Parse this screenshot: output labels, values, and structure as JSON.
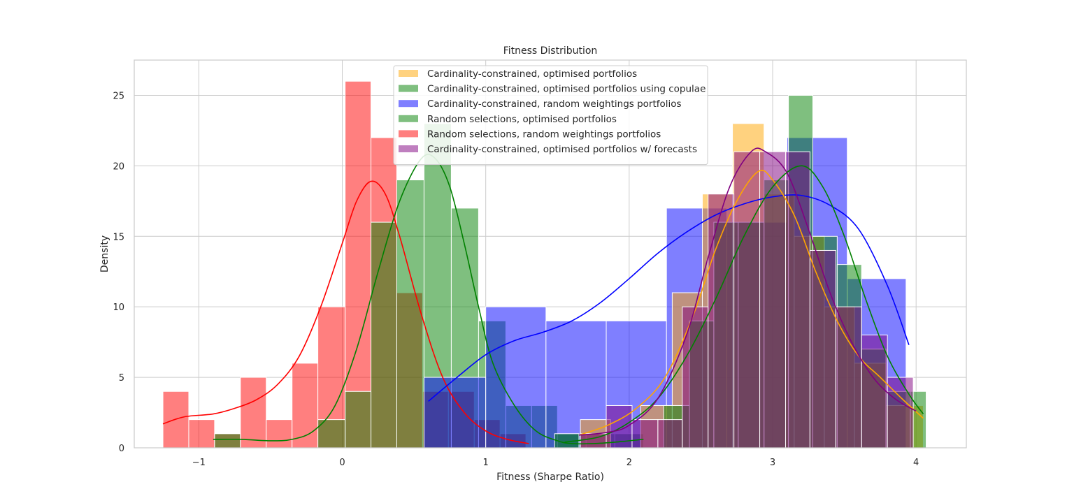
{
  "chart_data": {
    "type": "histogram",
    "title": "Fitness Distribution",
    "xlabel": "Fitness (Sharpe Ratio)",
    "ylabel": "Density",
    "xlim": [
      -1.45,
      4.35
    ],
    "ylim": [
      0,
      27.5
    ],
    "xticks": [
      {
        "v": -1,
        "label": "−1"
      },
      {
        "v": 0,
        "label": "0"
      },
      {
        "v": 1,
        "label": "1"
      },
      {
        "v": 2,
        "label": "2"
      },
      {
        "v": 3,
        "label": "3"
      },
      {
        "v": 4,
        "label": "4"
      }
    ],
    "yticks": [
      {
        "v": 0,
        "label": "0"
      },
      {
        "v": 5,
        "label": "5"
      },
      {
        "v": 10,
        "label": "10"
      },
      {
        "v": 15,
        "label": "15"
      },
      {
        "v": 20,
        "label": "20"
      },
      {
        "v": 25,
        "label": "25"
      }
    ],
    "grid": true,
    "legend_position": "top-center",
    "series": [
      {
        "name": "Random selections, random weightings portfolios",
        "color": "#ff0000",
        "bins": [
          [
            -1.25,
            -1.07,
            4
          ],
          [
            -1.07,
            -0.89,
            2
          ],
          [
            -0.89,
            -0.71,
            1
          ],
          [
            -0.71,
            -0.53,
            5
          ],
          [
            -0.53,
            -0.35,
            2
          ],
          [
            -0.35,
            -0.17,
            6
          ],
          [
            -0.17,
            0.02,
            10
          ],
          [
            0.02,
            0.2,
            26
          ],
          [
            0.2,
            0.38,
            22
          ],
          [
            0.38,
            0.56,
            11
          ],
          [
            0.56,
            0.74,
            4
          ],
          [
            0.74,
            0.92,
            4
          ],
          [
            0.92,
            1.1,
            2
          ],
          [
            1.1,
            1.28,
            1
          ]
        ],
        "kde": [
          [
            -1.25,
            1.7
          ],
          [
            -1.1,
            2.2
          ],
          [
            -0.9,
            2.4
          ],
          [
            -0.75,
            2.8
          ],
          [
            -0.6,
            3.4
          ],
          [
            -0.45,
            4.5
          ],
          [
            -0.3,
            6.5
          ],
          [
            -0.15,
            10.0
          ],
          [
            0.0,
            14.5
          ],
          [
            0.1,
            17.5
          ],
          [
            0.2,
            18.9
          ],
          [
            0.3,
            18.0
          ],
          [
            0.4,
            15.0
          ],
          [
            0.55,
            9.5
          ],
          [
            0.7,
            5.0
          ],
          [
            0.85,
            2.5
          ],
          [
            1.0,
            1.2
          ],
          [
            1.15,
            0.6
          ],
          [
            1.3,
            0.3
          ]
        ]
      },
      {
        "name": "Random selections, optimised portfolios",
        "color": "#008000",
        "bins": [
          [
            -0.89,
            -0.71,
            1
          ],
          [
            -0.17,
            0.02,
            2
          ],
          [
            0.02,
            0.2,
            4
          ],
          [
            0.2,
            0.38,
            16
          ],
          [
            0.38,
            0.57,
            19
          ],
          [
            0.57,
            0.76,
            23
          ],
          [
            0.76,
            0.95,
            17
          ],
          [
            0.95,
            1.14,
            9
          ],
          [
            1.14,
            1.32,
            3
          ],
          [
            1.32,
            1.5,
            3
          ],
          [
            1.5,
            1.7,
            1
          ],
          [
            1.7,
            1.9,
            1
          ],
          [
            1.9,
            2.1,
            1
          ]
        ],
        "kde": [
          [
            -0.9,
            0.6
          ],
          [
            -0.7,
            0.6
          ],
          [
            -0.5,
            0.5
          ],
          [
            -0.35,
            0.6
          ],
          [
            -0.2,
            1.2
          ],
          [
            -0.05,
            3.0
          ],
          [
            0.1,
            7.0
          ],
          [
            0.25,
            12.5
          ],
          [
            0.4,
            17.5
          ],
          [
            0.55,
            20.5
          ],
          [
            0.65,
            20.5
          ],
          [
            0.75,
            18.5
          ],
          [
            0.85,
            14.5
          ],
          [
            0.95,
            10.0
          ],
          [
            1.05,
            6.0
          ],
          [
            1.2,
            3.0
          ],
          [
            1.35,
            1.2
          ],
          [
            1.5,
            0.5
          ],
          [
            1.6,
            0.3
          ],
          [
            1.75,
            0.3
          ],
          [
            1.9,
            0.4
          ],
          [
            2.1,
            0.6
          ]
        ]
      },
      {
        "name": "Cardinality-constrained, random weightings portfolios",
        "color": "#0000ff",
        "bins": [
          [
            0.57,
            1.0,
            5
          ],
          [
            1.0,
            1.42,
            10
          ],
          [
            1.42,
            1.84,
            9
          ],
          [
            1.84,
            2.26,
            9
          ],
          [
            2.26,
            2.68,
            17
          ],
          [
            2.68,
            3.1,
            16
          ],
          [
            3.1,
            3.52,
            22
          ],
          [
            3.52,
            3.93,
            12
          ]
        ],
        "kde": [
          [
            0.6,
            3.3
          ],
          [
            0.8,
            5.0
          ],
          [
            1.0,
            6.6
          ],
          [
            1.2,
            7.6
          ],
          [
            1.4,
            8.2
          ],
          [
            1.6,
            9.0
          ],
          [
            1.8,
            10.3
          ],
          [
            2.0,
            12.0
          ],
          [
            2.2,
            13.8
          ],
          [
            2.4,
            15.3
          ],
          [
            2.6,
            16.5
          ],
          [
            2.8,
            17.3
          ],
          [
            3.0,
            17.8
          ],
          [
            3.2,
            17.9
          ],
          [
            3.4,
            17.2
          ],
          [
            3.6,
            15.5
          ],
          [
            3.8,
            11.5
          ],
          [
            3.95,
            7.3
          ]
        ]
      },
      {
        "name": "Cardinality-constrained, optimised portfolios",
        "color": "#ffa500",
        "bins": [
          [
            1.66,
            1.87,
            2
          ],
          [
            2.08,
            2.3,
            3
          ],
          [
            2.3,
            2.51,
            11
          ],
          [
            2.51,
            2.72,
            18
          ],
          [
            2.72,
            2.94,
            23
          ],
          [
            2.94,
            3.15,
            18
          ],
          [
            3.15,
            3.36,
            15
          ],
          [
            3.36,
            3.57,
            10
          ],
          [
            3.57,
            3.79,
            6
          ],
          [
            3.79,
            4.05,
            3
          ]
        ],
        "kde": [
          [
            1.65,
            0.9
          ],
          [
            1.85,
            1.6
          ],
          [
            2.05,
            2.8
          ],
          [
            2.25,
            5.0
          ],
          [
            2.45,
            9.5
          ],
          [
            2.6,
            14.0
          ],
          [
            2.75,
            17.5
          ],
          [
            2.9,
            19.6
          ],
          [
            3.0,
            19.0
          ],
          [
            3.15,
            16.5
          ],
          [
            3.3,
            12.5
          ],
          [
            3.45,
            9.0
          ],
          [
            3.6,
            6.5
          ],
          [
            3.75,
            5.0
          ],
          [
            3.9,
            3.5
          ],
          [
            4.05,
            2.1
          ]
        ]
      },
      {
        "name": "Cardinality-constrained, optimised portfolios using copulae",
        "color": "#008000",
        "bins": [
          [
            1.48,
            1.65,
            1
          ],
          [
            2.24,
            2.42,
            3
          ],
          [
            2.42,
            2.59,
            9
          ],
          [
            2.59,
            2.76,
            16
          ],
          [
            2.76,
            2.94,
            16
          ],
          [
            2.94,
            3.11,
            19
          ],
          [
            3.11,
            3.28,
            25
          ],
          [
            3.28,
            3.45,
            15
          ],
          [
            3.45,
            3.62,
            13
          ],
          [
            3.62,
            3.79,
            7
          ],
          [
            3.79,
            3.96,
            4
          ],
          [
            3.96,
            4.07,
            4
          ]
        ],
        "kde": [
          [
            1.55,
            0.4
          ],
          [
            1.8,
            0.8
          ],
          [
            2.0,
            1.8
          ],
          [
            2.2,
            3.5
          ],
          [
            2.4,
            6.5
          ],
          [
            2.6,
            10.5
          ],
          [
            2.8,
            15.0
          ],
          [
            3.0,
            18.5
          ],
          [
            3.2,
            20.0
          ],
          [
            3.35,
            18.5
          ],
          [
            3.5,
            15.0
          ],
          [
            3.65,
            10.5
          ],
          [
            3.8,
            6.5
          ],
          [
            3.95,
            3.8
          ],
          [
            4.05,
            2.4
          ]
        ]
      },
      {
        "name": "Cardinality-constrained, optimised portfolios w/ forecasts",
        "color": "#800080",
        "bins": [
          [
            1.66,
            1.84,
            1
          ],
          [
            1.84,
            2.02,
            3
          ],
          [
            2.02,
            2.2,
            2
          ],
          [
            2.2,
            2.37,
            2
          ],
          [
            2.37,
            2.55,
            10
          ],
          [
            2.55,
            2.73,
            18
          ],
          [
            2.73,
            2.91,
            21
          ],
          [
            2.91,
            3.09,
            21
          ],
          [
            3.09,
            3.26,
            21
          ],
          [
            3.26,
            3.44,
            14
          ],
          [
            3.44,
            3.62,
            10
          ],
          [
            3.62,
            3.8,
            8
          ],
          [
            3.8,
            3.98,
            5
          ]
        ],
        "kde": [
          [
            1.65,
            0.9
          ],
          [
            1.85,
            1.1
          ],
          [
            2.0,
            1.6
          ],
          [
            2.2,
            3.5
          ],
          [
            2.4,
            8.0
          ],
          [
            2.55,
            13.5
          ],
          [
            2.7,
            18.5
          ],
          [
            2.85,
            21.0
          ],
          [
            2.95,
            21.0
          ],
          [
            3.1,
            19.5
          ],
          [
            3.25,
            15.5
          ],
          [
            3.4,
            11.0
          ],
          [
            3.55,
            7.5
          ],
          [
            3.7,
            5.0
          ],
          [
            3.85,
            3.5
          ],
          [
            4.0,
            2.6
          ]
        ]
      }
    ]
  }
}
